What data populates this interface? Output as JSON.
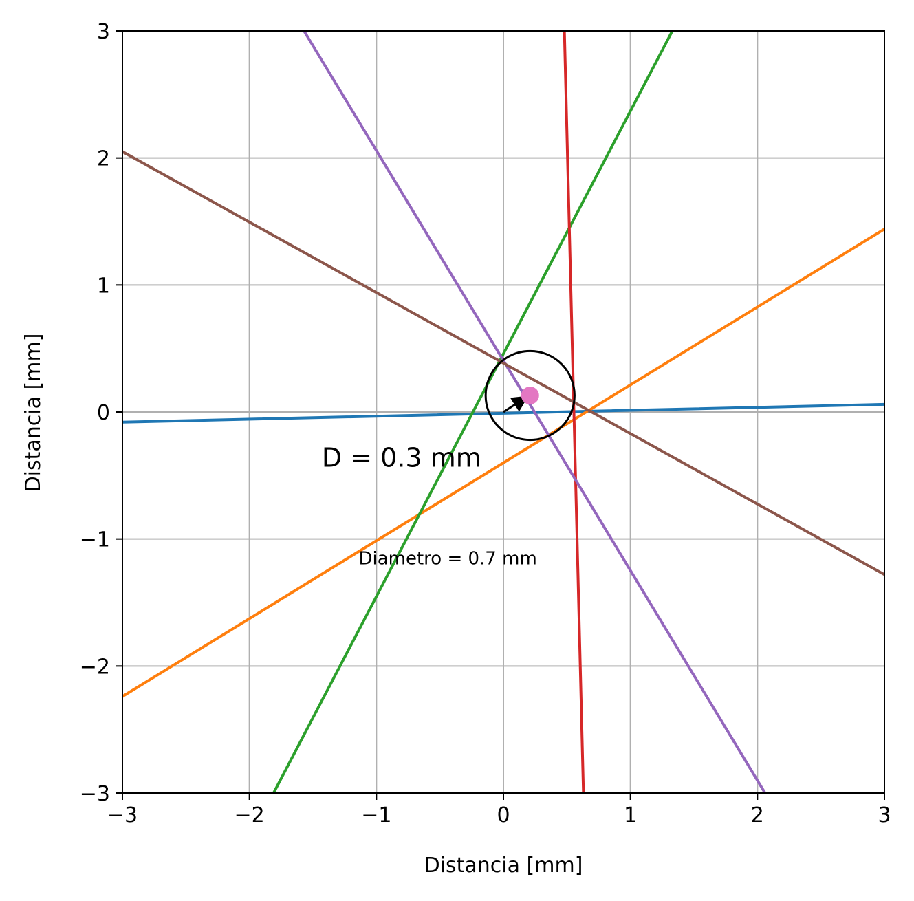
{
  "chart_data": {
    "type": "line",
    "title": "",
    "xlabel": "Distancia [mm]",
    "ylabel": "Distancia [mm]",
    "xlim": [
      -3,
      3
    ],
    "ylim": [
      -3,
      3
    ],
    "grid": true,
    "legend": "none",
    "xticks": [
      -3,
      -2,
      -1,
      0,
      1,
      2,
      3
    ],
    "yticks": [
      -3,
      -2,
      -1,
      0,
      1,
      2,
      3
    ],
    "xtick_labels": [
      "−3",
      "−2",
      "−1",
      "0",
      "1",
      "2",
      "3"
    ],
    "ytick_labels": [
      "−3",
      "−2",
      "−1",
      "0",
      "1",
      "2",
      "3"
    ],
    "series": [
      {
        "color": "#1f77b4",
        "points": [
          [
            -3,
            -0.08
          ],
          [
            3,
            0.06
          ]
        ]
      },
      {
        "color": "#ff7f0e",
        "points": [
          [
            -3,
            -2.24
          ],
          [
            3,
            1.44
          ]
        ]
      },
      {
        "color": "#2ca02c",
        "points": [
          [
            -1.81,
            -3
          ],
          [
            1.33,
            3
          ]
        ]
      },
      {
        "color": "#d62728",
        "points": [
          [
            0.48,
            3
          ],
          [
            0.63,
            -3
          ]
        ]
      },
      {
        "color": "#9467bd",
        "points": [
          [
            -1.57,
            3
          ],
          [
            2.06,
            -3
          ]
        ]
      },
      {
        "color": "#8c564b",
        "points": [
          [
            -3,
            2.05
          ],
          [
            3,
            -1.28
          ]
        ]
      }
    ],
    "point": {
      "x": 0.21,
      "y": 0.13,
      "color": "#e377c2"
    },
    "circle": {
      "cx": 0.21,
      "cy": 0.13,
      "r": 0.35,
      "color": "#000000"
    },
    "arrow": {
      "from": [
        0.0,
        0.0
      ],
      "to": [
        0.17,
        0.11
      ]
    },
    "annotations": [
      {
        "text": "D = 0.3 mm",
        "x": -1.43,
        "y": -0.43,
        "size": "big"
      },
      {
        "text": "Diametro = 0.7 mm",
        "x": -1.14,
        "y": -1.2,
        "size": "small"
      }
    ]
  }
}
